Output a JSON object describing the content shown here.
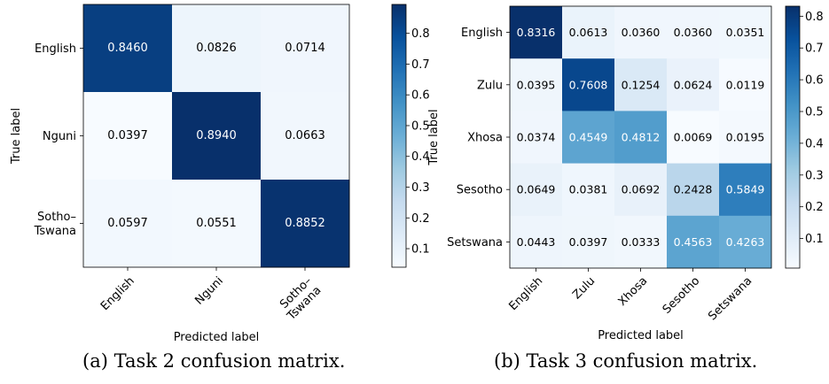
{
  "chart_data": [
    {
      "type": "heatmap",
      "title": "",
      "xlabel": "Predicted label",
      "ylabel": "True label",
      "x_categories": [
        "English",
        "Nguni",
        "Sotho–\nTswana"
      ],
      "y_categories": [
        "English",
        "Nguni",
        "Sotho–\nTswana"
      ],
      "values": [
        [
          0.846,
          0.0826,
          0.0714
        ],
        [
          0.0397,
          0.894,
          0.0663
        ],
        [
          0.0597,
          0.0551,
          0.8852
        ]
      ],
      "colorbar": {
        "colormap": "Blues",
        "range": [
          0.0397,
          0.894
        ],
        "ticks": [
          0.1,
          0.2,
          0.3,
          0.4,
          0.5,
          0.6,
          0.7,
          0.8
        ]
      },
      "caption": "(a) Task 2 confusion matrix."
    },
    {
      "type": "heatmap",
      "title": "",
      "xlabel": "Predicted label",
      "ylabel": "True label",
      "x_categories": [
        "English",
        "Zulu",
        "Xhosa",
        "Sesotho",
        "Setswana"
      ],
      "y_categories": [
        "English",
        "Zulu",
        "Xhosa",
        "Sesotho",
        "Setswana"
      ],
      "values": [
        [
          0.8316,
          0.0613,
          0.036,
          0.036,
          0.0351
        ],
        [
          0.0395,
          0.7608,
          0.1254,
          0.0624,
          0.0119
        ],
        [
          0.0374,
          0.4549,
          0.4812,
          0.0069,
          0.0195
        ],
        [
          0.0649,
          0.0381,
          0.0692,
          0.2428,
          0.5849
        ],
        [
          0.0443,
          0.0397,
          0.0333,
          0.4563,
          0.4263
        ]
      ],
      "colorbar": {
        "colormap": "Blues",
        "range": [
          0.0069,
          0.8316
        ],
        "ticks": [
          0.1,
          0.2,
          0.3,
          0.4,
          0.5,
          0.6,
          0.7,
          0.8
        ]
      },
      "caption": "(b) Task 3 confusion matrix."
    }
  ]
}
